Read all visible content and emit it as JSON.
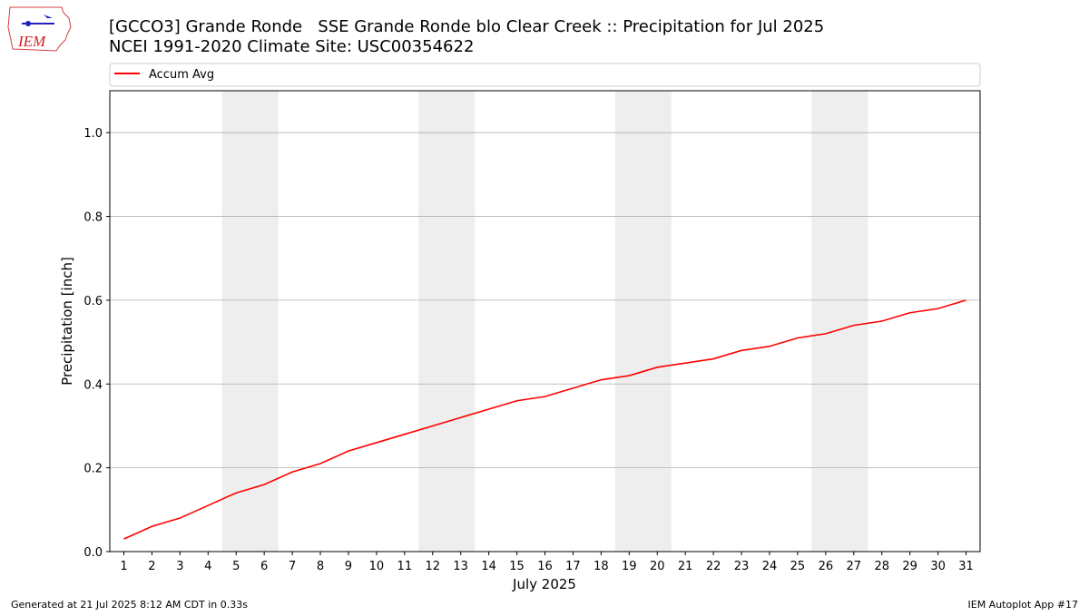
{
  "logo_text": "IEM",
  "chart_data": {
    "type": "line",
    "title": "[GCCO3] Grande Ronde   SSE Grande Ronde blo Clear Creek :: Precipitation for Jul 2025",
    "subtitle": "NCEI 1991-2020 Climate Site: USC00354622",
    "x_label": "July 2025",
    "y_label": "Precipitation [inch]",
    "x": [
      1,
      2,
      3,
      4,
      5,
      6,
      7,
      8,
      9,
      10,
      11,
      12,
      13,
      14,
      15,
      16,
      17,
      18,
      19,
      20,
      21,
      22,
      23,
      24,
      25,
      26,
      27,
      28,
      29,
      30,
      31
    ],
    "series": [
      {
        "name": "Accum Avg",
        "color": "#ff0000",
        "values": [
          0.03,
          0.06,
          0.08,
          0.11,
          0.14,
          0.16,
          0.19,
          0.21,
          0.24,
          0.26,
          0.28,
          0.3,
          0.32,
          0.34,
          0.36,
          0.37,
          0.39,
          0.41,
          0.42,
          0.44,
          0.45,
          0.46,
          0.48,
          0.49,
          0.51,
          0.52,
          0.54,
          0.55,
          0.57,
          0.58,
          0.6
        ]
      }
    ],
    "xlim": [
      0.5,
      31.5
    ],
    "xticks": [
      1,
      2,
      3,
      4,
      5,
      6,
      7,
      8,
      9,
      10,
      11,
      12,
      13,
      14,
      15,
      16,
      17,
      18,
      19,
      20,
      21,
      22,
      23,
      24,
      25,
      26,
      27,
      28,
      29,
      30,
      31
    ],
    "ylim": [
      0,
      1.1
    ],
    "yticks": [
      {
        "value": 0,
        "label": "0.0"
      },
      0.2,
      0.4,
      0.6,
      0.8,
      {
        "value": 1,
        "label": "1.0"
      }
    ],
    "grid": true,
    "shaded_spans": [
      [
        4.5,
        6.5
      ],
      [
        11.5,
        13.5
      ],
      [
        18.5,
        20.5
      ],
      [
        25.5,
        27.5
      ]
    ],
    "legend_position": "top"
  },
  "footer": {
    "left": "Generated at 21 Jul 2025 8:12 AM CDT in 0.33s",
    "right": "IEM Autoplot App #17"
  }
}
